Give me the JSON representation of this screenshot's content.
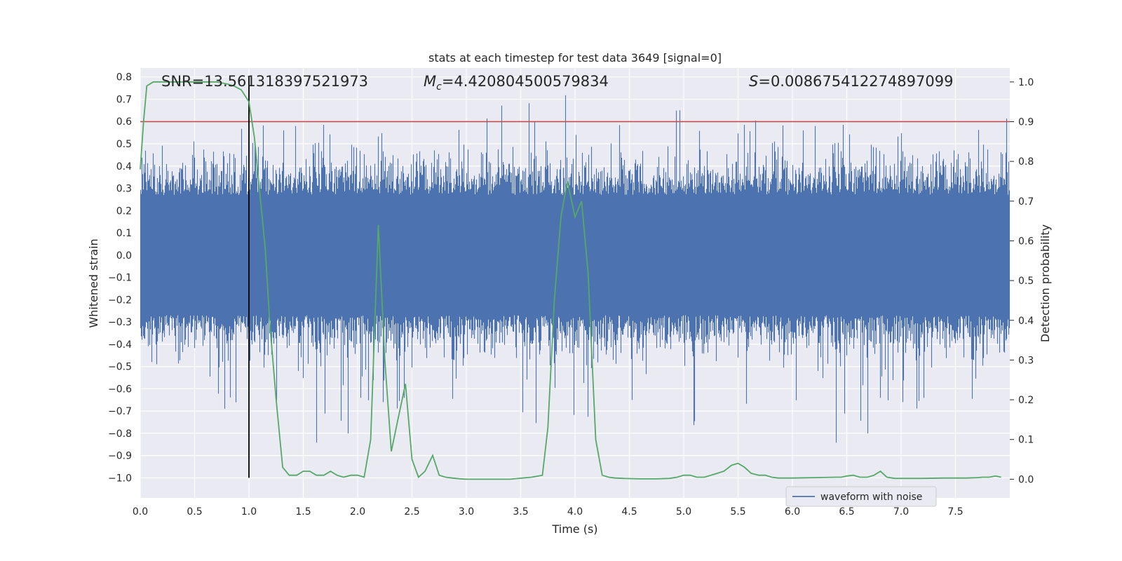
{
  "chart_data": {
    "type": "line",
    "title": "stats at each timestep for test data 3649 [signal=0]",
    "xlabel": "Time (s)",
    "ylabel": "Whitened strain",
    "y2label": "Detection probability",
    "xlim": [
      0.0,
      8.0
    ],
    "ylim": [
      -1.09,
      0.84
    ],
    "y2lim": [
      -0.047,
      1.035
    ],
    "x_ticks": [
      "0.0",
      "0.5",
      "1.0",
      "1.5",
      "2.0",
      "2.5",
      "3.0",
      "3.5",
      "4.0",
      "4.5",
      "5.0",
      "5.5",
      "6.0",
      "6.5",
      "7.0",
      "7.5"
    ],
    "x_tick_values": [
      0.0,
      0.5,
      1.0,
      1.5,
      2.0,
      2.5,
      3.0,
      3.5,
      4.0,
      4.5,
      5.0,
      5.5,
      6.0,
      6.5,
      7.0,
      7.5
    ],
    "y_ticks": [
      "0.8",
      "0.7",
      "0.6",
      "0.5",
      "0.4",
      "0.3",
      "0.2",
      "0.1",
      "0.0",
      "−0.1",
      "−0.2",
      "−0.3",
      "−0.4",
      "−0.5",
      "−0.6",
      "−0.7",
      "−0.8",
      "−0.9",
      "−1.0"
    ],
    "y_tick_values": [
      0.8,
      0.7,
      0.6,
      0.5,
      0.4,
      0.3,
      0.2,
      0.1,
      0.0,
      -0.1,
      -0.2,
      -0.3,
      -0.4,
      -0.5,
      -0.6,
      -0.7,
      -0.8,
      -0.9,
      -1.0
    ],
    "y2_ticks": [
      "1.0",
      "0.9",
      "0.8",
      "0.7",
      "0.6",
      "0.5",
      "0.4",
      "0.3",
      "0.2",
      "0.1",
      "0.0"
    ],
    "y2_tick_values": [
      1.0,
      0.9,
      0.8,
      0.7,
      0.6,
      0.5,
      0.4,
      0.3,
      0.2,
      0.1,
      0.0
    ],
    "threshold": 0.9,
    "vline_x": 1.0,
    "vline_range": [
      -1.0,
      0.8
    ],
    "annotations": {
      "snr": "SNR=13.561318397521973",
      "mc_symbol": "M",
      "mc_sub": "c",
      "mc_value": "=4.420804500579834",
      "s_symbol": "S",
      "s_value": "=0.008675412274897099"
    },
    "legend": {
      "label": "waveform with noise",
      "placement": "lower-right"
    },
    "colors": {
      "waveform": "#4c72b0",
      "probability": "#55a868",
      "threshold": "#c44e52",
      "vline": "#000000",
      "background": "#eaeaf2",
      "grid": "#ffffff"
    },
    "grid": true,
    "series": [
      {
        "name": "waveform with noise",
        "axis": "left",
        "style": "dense-noise",
        "duration_s": 8.0,
        "approx_abs_max": 0.8
      },
      {
        "axis": "right",
        "x": [
          0.0,
          0.03,
          0.06,
          0.12,
          0.2,
          0.3,
          0.4,
          0.5,
          0.6,
          0.7,
          0.8,
          0.86,
          0.93,
          1.0,
          1.05,
          1.1,
          1.15,
          1.19,
          1.25,
          1.31,
          1.37,
          1.44,
          1.5,
          1.56,
          1.62,
          1.69,
          1.75,
          1.81,
          1.87,
          1.94,
          2.0,
          2.06,
          2.12,
          2.19,
          2.25,
          2.31,
          2.37,
          2.44,
          2.5,
          2.56,
          2.62,
          2.69,
          2.75,
          2.81,
          2.87,
          2.94,
          3.0,
          3.2,
          3.4,
          3.6,
          3.7,
          3.75,
          3.81,
          3.87,
          3.93,
          4.0,
          4.06,
          4.12,
          4.19,
          4.25,
          4.31,
          4.37,
          4.44,
          4.6,
          4.75,
          4.87,
          4.94,
          5.0,
          5.06,
          5.12,
          5.19,
          5.25,
          5.31,
          5.37,
          5.44,
          5.5,
          5.56,
          5.62,
          5.69,
          5.75,
          5.81,
          5.87,
          5.94,
          6.0,
          6.2,
          6.4,
          6.45,
          6.5,
          6.56,
          6.62,
          6.69,
          6.75,
          6.81,
          6.87,
          6.94,
          7.0,
          7.2,
          7.4,
          7.6,
          7.7,
          7.75,
          7.81,
          7.87,
          7.92
        ],
        "y": [
          0.78,
          0.9,
          0.99,
          1.0,
          1.0,
          1.0,
          1.0,
          1.0,
          1.0,
          1.0,
          0.995,
          0.99,
          0.98,
          0.95,
          0.86,
          0.72,
          0.58,
          0.4,
          0.2,
          0.03,
          0.01,
          0.01,
          0.02,
          0.02,
          0.01,
          0.01,
          0.02,
          0.01,
          0.005,
          0.01,
          0.01,
          0.005,
          0.1,
          0.64,
          0.3,
          0.07,
          0.15,
          0.24,
          0.05,
          0.005,
          0.02,
          0.06,
          0.01,
          0.005,
          0.003,
          0.001,
          0.0,
          0.0,
          0.0,
          0.005,
          0.01,
          0.13,
          0.45,
          0.66,
          0.75,
          0.66,
          0.7,
          0.52,
          0.1,
          0.01,
          0.005,
          0.003,
          0.002,
          0.001,
          0.001,
          0.002,
          0.005,
          0.01,
          0.01,
          0.005,
          0.005,
          0.01,
          0.015,
          0.02,
          0.035,
          0.04,
          0.03,
          0.015,
          0.01,
          0.01,
          0.005,
          0.003,
          0.003,
          0.003,
          0.004,
          0.005,
          0.005,
          0.008,
          0.01,
          0.005,
          0.005,
          0.01,
          0.02,
          0.005,
          0.002,
          0.002,
          0.002,
          0.003,
          0.003,
          0.004,
          0.005,
          0.005,
          0.008,
          0.005
        ]
      }
    ]
  }
}
